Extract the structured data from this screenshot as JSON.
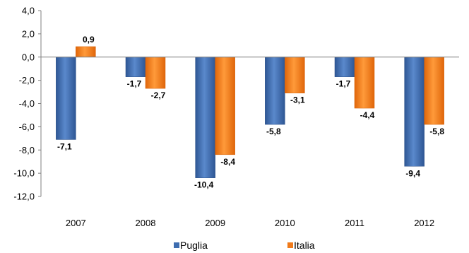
{
  "chart_data": {
    "type": "bar",
    "categories": [
      "2007",
      "2008",
      "2009",
      "2010",
      "2011",
      "2012"
    ],
    "series": [
      {
        "name": "Puglia",
        "values": [
          -7.1,
          -1.7,
          -10.4,
          -5.8,
          -1.7,
          -9.4
        ],
        "labels": [
          "-7,1",
          "-1,7",
          "-10,4",
          "-5,8",
          "-1,7",
          "-9,4"
        ],
        "color": "#3E6DB0"
      },
      {
        "name": "Italia",
        "values": [
          0.9,
          -2.7,
          -8.4,
          -3.1,
          -4.4,
          -5.8
        ],
        "labels": [
          "0,9",
          "-2,7",
          "-8,4",
          "-3,1",
          "-4,4",
          "-5,8"
        ],
        "color": "#F07A1A"
      }
    ],
    "yticks": [
      4,
      2,
      0,
      -2,
      -4,
      -6,
      -8,
      -10,
      -12
    ],
    "ytick_labels": [
      "4,0",
      "2,0",
      "0,0",
      "-2,0",
      "-4,0",
      "-6,0",
      "-8,0",
      "-10,0",
      "-12,0"
    ],
    "ylim": [
      -12,
      4
    ],
    "grid": false,
    "legend": "bottom"
  }
}
